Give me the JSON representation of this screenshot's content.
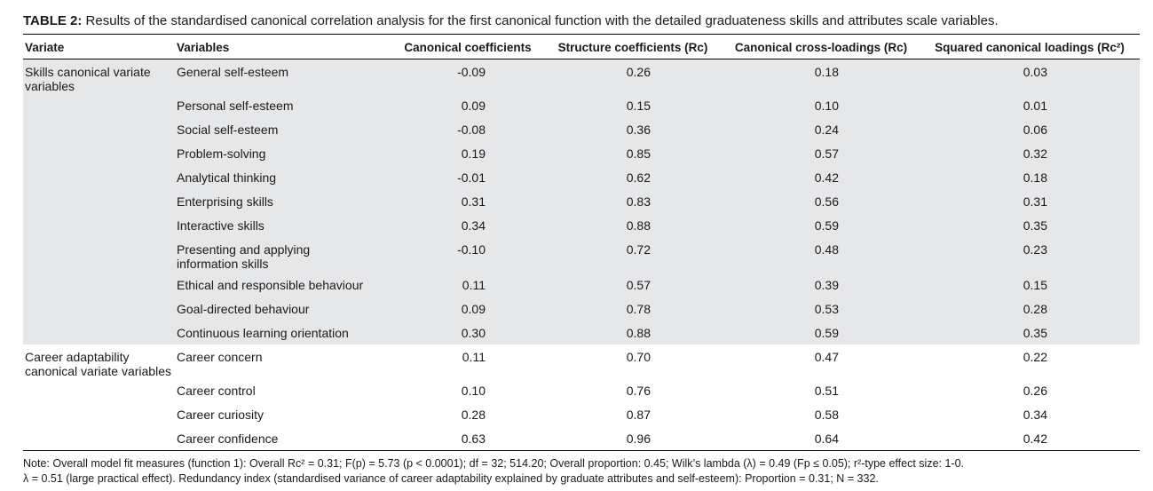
{
  "caption": {
    "label": "TABLE 2:",
    "text": " Results of the standardised canonical correlation analysis for the first canonical function with the detailed graduateness skills and attributes scale variables."
  },
  "headers": [
    "Variate",
    "Variables",
    "Canonical coefficients",
    "Structure coefficients (Rc)",
    "Canonical cross-loadings (Rc)",
    "Squared canonical loadings (Rc²)"
  ],
  "groups": [
    {
      "variate": "Skills canonical variate variables",
      "rows": [
        {
          "variable": "General self-esteem",
          "cc": "-0.09",
          "sc": "0.26",
          "ccl": "0.18",
          "scl": "0.03"
        },
        {
          "variable": "Personal self-esteem",
          "cc": "0.09",
          "sc": "0.15",
          "ccl": "0.10",
          "scl": "0.01"
        },
        {
          "variable": "Social self-esteem",
          "cc": "-0.08",
          "sc": "0.36",
          "ccl": "0.24",
          "scl": "0.06"
        },
        {
          "variable": "Problem-solving",
          "cc": "0.19",
          "sc": "0.85",
          "ccl": "0.57",
          "scl": "0.32"
        },
        {
          "variable": "Analytical thinking",
          "cc": "-0.01",
          "sc": "0.62",
          "ccl": "0.42",
          "scl": "0.18"
        },
        {
          "variable": "Enterprising skills",
          "cc": "0.31",
          "sc": "0.83",
          "ccl": "0.56",
          "scl": "0.31"
        },
        {
          "variable": "Interactive skills",
          "cc": "0.34",
          "sc": "0.88",
          "ccl": "0.59",
          "scl": "0.35"
        },
        {
          "variable": "Presenting and applying information skills",
          "cc": "-0.10",
          "sc": "0.72",
          "ccl": "0.48",
          "scl": "0.23"
        },
        {
          "variable": "Ethical and responsible behaviour",
          "cc": "0.11",
          "sc": "0.57",
          "ccl": "0.39",
          "scl": "0.15"
        },
        {
          "variable": "Goal-directed behaviour",
          "cc": "0.09",
          "sc": "0.78",
          "ccl": "0.53",
          "scl": "0.28"
        },
        {
          "variable": "Continuous learning orientation",
          "cc": "0.30",
          "sc": "0.88",
          "ccl": "0.59",
          "scl": "0.35"
        }
      ]
    },
    {
      "variate": "Career adaptability canonical variate variables",
      "rows": [
        {
          "variable": "Career concern",
          "cc": "0.11",
          "sc": "0.70",
          "ccl": "0.47",
          "scl": "0.22"
        },
        {
          "variable": "Career control",
          "cc": "0.10",
          "sc": "0.76",
          "ccl": "0.51",
          "scl": "0.26"
        },
        {
          "variable": "Career curiosity",
          "cc": "0.28",
          "sc": "0.87",
          "ccl": "0.58",
          "scl": "0.34"
        },
        {
          "variable": "Career confidence",
          "cc": "0.63",
          "sc": "0.96",
          "ccl": "0.64",
          "scl": "0.42"
        }
      ]
    }
  ],
  "note": {
    "line1": "Note: Overall model fit measures (function 1): Overall Rc² = 0.31; F(p) = 5.73 (p < 0.0001); df = 32; 514.20; Overall proportion: 0.45; Wilk’s lambda (λ) = 0.49 (Fp ≤ 0.05); r²-type effect size: 1-0.",
    "line2": "λ = 0.51 (large practical effect). Redundancy index (standardised variance of career adaptability explained by graduate attributes and self-esteem): Proportion = 0.31; N = 332."
  }
}
